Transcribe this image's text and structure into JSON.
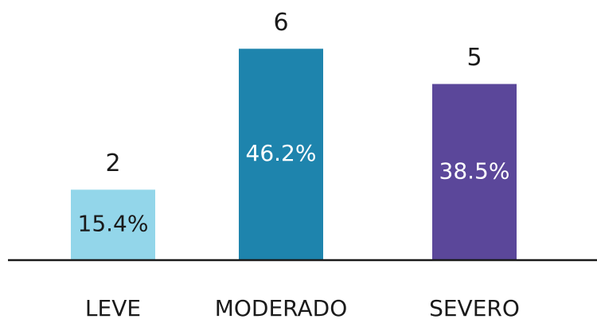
{
  "chart_data": {
    "type": "bar",
    "categories": [
      "LEVE",
      "MODERADO",
      "SEVERO"
    ],
    "values": [
      2,
      6,
      5
    ],
    "shares": [
      15.4,
      46.2,
      38.5
    ],
    "share_labels": [
      "15.4%",
      "46.2%",
      "38.5%"
    ],
    "colors": [
      "#93d6ea",
      "#1e84ad",
      "#5b479a"
    ],
    "share_label_colors": [
      "#1a1a1a",
      "#ffffff",
      "#ffffff"
    ],
    "ylim": [
      0,
      7
    ]
  }
}
